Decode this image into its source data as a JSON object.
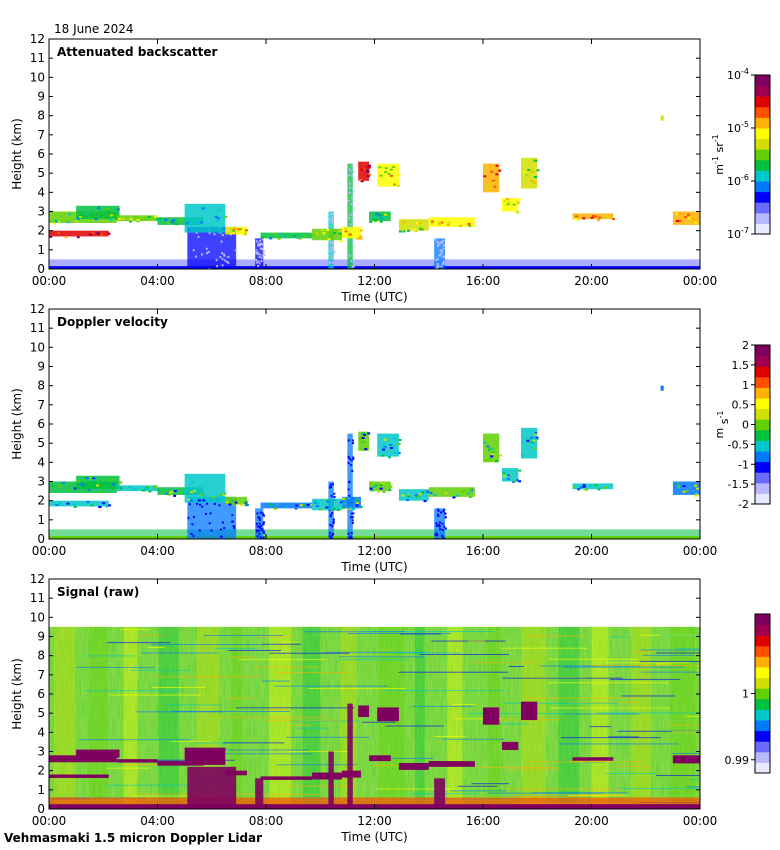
{
  "date_label": "18 June 2024",
  "footer": "Vehmasmaki 1.5 micron Doppler Lidar",
  "colorbar_colors": [
    "#e8e8ff",
    "#b8b8ff",
    "#6a6aff",
    "#0000ff",
    "#0078ff",
    "#00c8c8",
    "#00c040",
    "#60d000",
    "#d0e000",
    "#ffff00",
    "#ffb000",
    "#ff5000",
    "#e00000",
    "#a00050",
    "#800060"
  ],
  "chart_data": [
    {
      "type": "heatmap",
      "title": "Attenuated backscatter",
      "xlabel": "Time (UTC)",
      "ylabel": "Height (km)",
      "xticks": [
        "00:00",
        "04:00",
        "08:00",
        "12:00",
        "16:00",
        "20:00",
        "00:00"
      ],
      "xlim": [
        0,
        24
      ],
      "ylim": [
        0,
        12
      ],
      "yticks": [
        "0",
        "1",
        "2",
        "3",
        "4",
        "5",
        "6",
        "7",
        "8",
        "9",
        "10",
        "11",
        "12"
      ],
      "colorbar": {
        "scale": "log",
        "ticks": [
          {
            "mantissa": "10",
            "exp": "-7",
            "value": -7
          },
          {
            "mantissa": "10",
            "exp": "-6",
            "value": -6
          },
          {
            "mantissa": "10",
            "exp": "-5",
            "value": -5
          },
          {
            "mantissa": "10",
            "exp": "-4",
            "value": -4
          }
        ],
        "range": [
          -7,
          -4
        ],
        "unit": "m-1 sr-1",
        "unit_base": [
          "m",
          "sr"
        ],
        "unit_exp": [
          "-1",
          "-1"
        ]
      }
    },
    {
      "type": "heatmap",
      "title": "Doppler velocity",
      "xlabel": "Time (UTC)",
      "ylabel": "Height (km)",
      "xticks": [
        "00:00",
        "04:00",
        "08:00",
        "12:00",
        "16:00",
        "20:00",
        "00:00"
      ],
      "xlim": [
        0,
        24
      ],
      "ylim": [
        0,
        12
      ],
      "yticks": [
        "0",
        "1",
        "2",
        "3",
        "4",
        "5",
        "6",
        "7",
        "8",
        "9",
        "10",
        "11",
        "12"
      ],
      "colorbar": {
        "scale": "linear",
        "ticks": [
          {
            "label": "-2",
            "value": -2
          },
          {
            "label": "-1.5",
            "value": -1.5
          },
          {
            "label": "-1",
            "value": -1
          },
          {
            "label": "-0.5",
            "value": -0.5
          },
          {
            "label": "0",
            "value": 0
          },
          {
            "label": "0.5",
            "value": 0.5
          },
          {
            "label": "1",
            "value": 1
          },
          {
            "label": "1.5",
            "value": 1.5
          },
          {
            "label": "2",
            "value": 2
          }
        ],
        "range": [
          -2,
          2
        ],
        "unit": "m s-1",
        "unit_base": [
          "m",
          "s"
        ],
        "unit_exp": [
          "",
          "-1"
        ]
      }
    },
    {
      "type": "heatmap",
      "title": "Signal (raw)",
      "xlabel": "Time (UTC)",
      "ylabel": "Height (km)",
      "xticks": [
        "00:00",
        "04:00",
        "08:00",
        "12:00",
        "16:00",
        "20:00",
        "00:00"
      ],
      "xlim": [
        0,
        24
      ],
      "ylim": [
        0,
        12
      ],
      "yticks": [
        "0",
        "1",
        "2",
        "3",
        "4",
        "5",
        "6",
        "7",
        "8",
        "9",
        "10",
        "11",
        "12"
      ],
      "signal_top_km": 9.5,
      "colorbar": {
        "scale": "linear",
        "ticks": [
          {
            "label": "0.99",
            "value": 0.99
          },
          {
            "label": "1",
            "value": 1
          }
        ],
        "range": [
          0.988,
          1.012
        ],
        "unit": ""
      }
    }
  ],
  "features": {
    "cloud_layers": [
      {
        "t0": 0.0,
        "t1": 2.2,
        "h0": 1.7,
        "h1": 2.0,
        "c": 12
      },
      {
        "t0": 0.0,
        "t1": 2.5,
        "h0": 2.4,
        "h1": 3.0,
        "c": 7
      },
      {
        "t0": 1.0,
        "t1": 2.6,
        "h0": 2.6,
        "h1": 3.3,
        "c": 6
      },
      {
        "t0": 2.5,
        "t1": 4.0,
        "h0": 2.5,
        "h1": 2.8,
        "c": 7
      },
      {
        "t0": 4.0,
        "t1": 5.7,
        "h0": 2.3,
        "h1": 2.7,
        "c": 6
      },
      {
        "t0": 5.0,
        "t1": 6.5,
        "h0": 1.9,
        "h1": 3.4,
        "c": 5
      },
      {
        "t0": 6.5,
        "t1": 7.3,
        "h0": 1.8,
        "h1": 2.2,
        "c": 9
      },
      {
        "t0": 7.8,
        "t1": 9.7,
        "h0": 1.6,
        "h1": 1.9,
        "c": 6
      },
      {
        "t0": 9.7,
        "t1": 10.8,
        "h0": 1.5,
        "h1": 2.1,
        "c": 7
      },
      {
        "t0": 10.8,
        "t1": 11.5,
        "h0": 1.6,
        "h1": 2.2,
        "c": 9
      },
      {
        "t0": 11.4,
        "t1": 11.8,
        "h0": 4.6,
        "h1": 5.6,
        "c": 12
      },
      {
        "t0": 11.8,
        "t1": 12.6,
        "h0": 2.5,
        "h1": 3.0,
        "c": 6
      },
      {
        "t0": 12.1,
        "t1": 12.9,
        "h0": 4.3,
        "h1": 5.5,
        "c": 9
      },
      {
        "t0": 12.9,
        "t1": 14.0,
        "h0": 2.0,
        "h1": 2.6,
        "c": 8
      },
      {
        "t0": 14.0,
        "t1": 15.7,
        "h0": 2.2,
        "h1": 2.7,
        "c": 9
      },
      {
        "t0": 16.0,
        "t1": 16.6,
        "h0": 4.0,
        "h1": 5.5,
        "c": 10
      },
      {
        "t0": 16.7,
        "t1": 17.3,
        "h0": 3.0,
        "h1": 3.7,
        "c": 9
      },
      {
        "t0": 17.4,
        "t1": 18.0,
        "h0": 4.2,
        "h1": 5.8,
        "c": 8
      },
      {
        "t0": 19.3,
        "t1": 20.8,
        "h0": 2.6,
        "h1": 2.9,
        "c": 10
      },
      {
        "t0": 23.0,
        "t1": 24.0,
        "h0": 2.3,
        "h1": 3.0,
        "c": 10
      }
    ],
    "columns": [
      {
        "t0": 5.1,
        "t1": 6.9,
        "h0": 0.0,
        "h1": 2.2,
        "c": 3
      },
      {
        "t0": 7.6,
        "t1": 7.9,
        "h0": 0.0,
        "h1": 1.6,
        "c": 3
      },
      {
        "t0": 10.3,
        "t1": 10.5,
        "h0": 0.0,
        "h1": 3.0,
        "c": 5
      },
      {
        "t0": 11.0,
        "t1": 11.2,
        "h0": 0.0,
        "h1": 5.5,
        "c": 6
      },
      {
        "t0": 14.2,
        "t1": 14.6,
        "h0": 0.0,
        "h1": 1.6,
        "c": 4
      }
    ]
  }
}
